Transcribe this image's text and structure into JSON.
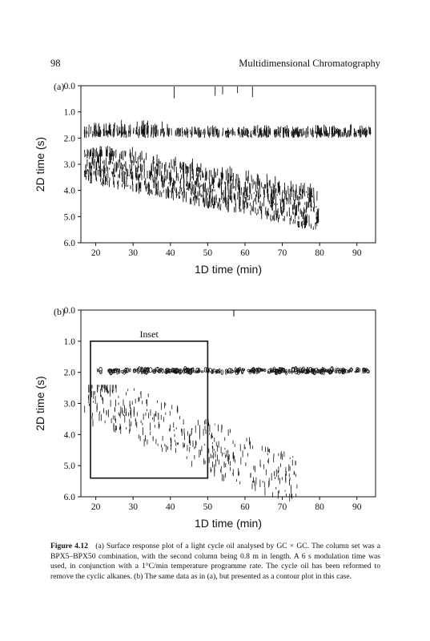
{
  "header": {
    "page_number": "98",
    "running_title": "Multidimensional Chromatography"
  },
  "panel_a": {
    "label": "(a)"
  },
  "panel_b": {
    "label": "(b)",
    "inset_label": "Inset"
  },
  "caption": {
    "label": "Figure 4.12",
    "text": "(a) Surface response plot of a light cycle oil analysed by GC × GC. The column set was a BPX5–BPX50 combination, with the second column being 0.8 m in length. A 6 s modulation time was used, in conjunction with a 1°C/min temperature programme rate. The cycle oil has been reformed to remove the cyclic alkanes. (b) The same data as in (a), but presented as a contour plot in this case."
  },
  "chart_data": [
    {
      "type": "surface",
      "xlabel": "1D time (min)",
      "ylabel": "2D time (s)",
      "xlim": [
        16,
        95
      ],
      "ylim": [
        0.0,
        6.0
      ],
      "y_inverted": true,
      "xticks": [
        "20",
        "30",
        "40",
        "50",
        "60",
        "70",
        "80",
        "90"
      ],
      "yticks": [
        "0.0",
        "1.0",
        "2.0",
        "3.0",
        "4.0",
        "5.0",
        "6.0"
      ],
      "bands": [
        {
          "x_start": 17,
          "x_end": 94,
          "y_start": 1.8,
          "y_end": 2.0
        },
        {
          "x_start": 17,
          "x_end": 80,
          "y_start": 3.0,
          "y_end": 5.0
        }
      ]
    },
    {
      "type": "contour",
      "xlabel": "1D time (min)",
      "ylabel": "2D time (s)",
      "xlim": [
        16,
        95
      ],
      "ylim": [
        0.0,
        6.0
      ],
      "y_inverted": true,
      "xticks": [
        "20",
        "30",
        "40",
        "50",
        "60",
        "70",
        "80",
        "90"
      ],
      "yticks": [
        "0.0",
        "1.0",
        "2.0",
        "3.0",
        "4.0",
        "5.0",
        "6.0"
      ],
      "inset": {
        "x": [
          16,
          50
        ],
        "y": [
          1.0,
          5.4
        ]
      },
      "bands": [
        {
          "x_start": 20,
          "x_end": 93,
          "y_start": 1.9,
          "y_end": 2.0
        },
        {
          "x_start": 17,
          "x_end": 74,
          "y_start": 2.6,
          "y_end": 5.5
        }
      ]
    }
  ]
}
